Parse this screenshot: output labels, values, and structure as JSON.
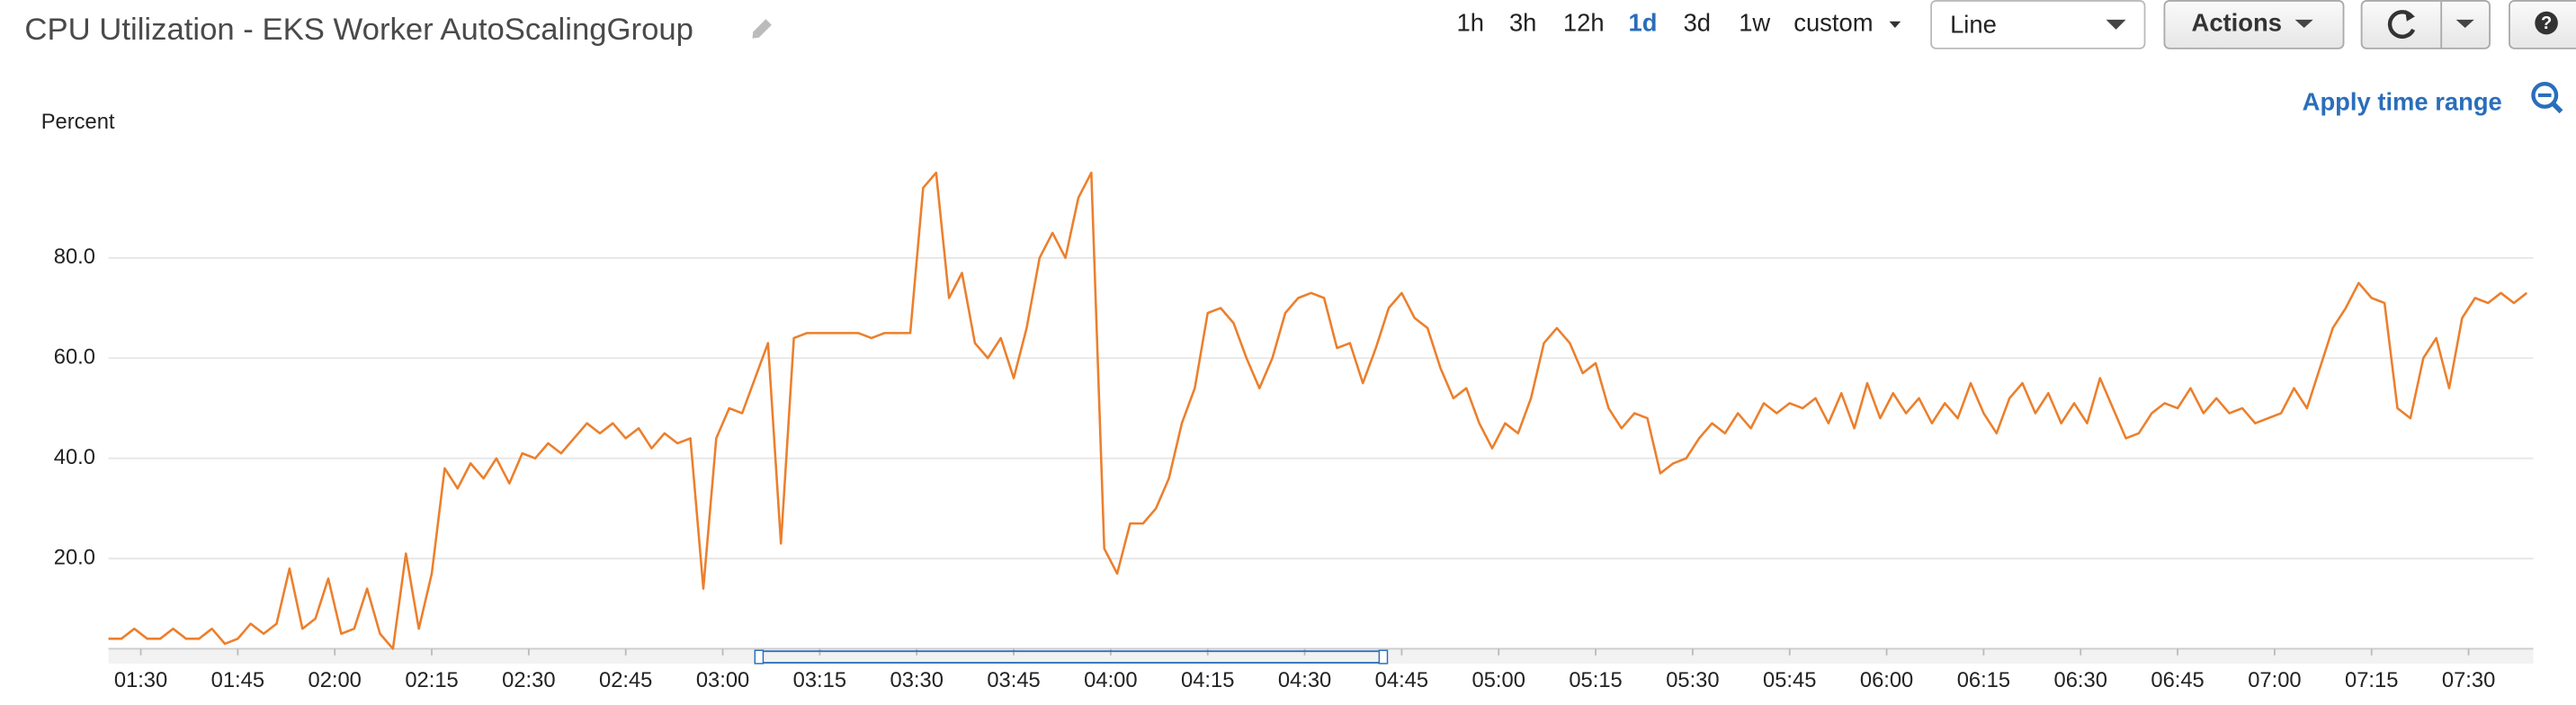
{
  "header": {
    "title": "CPU Utilization - EKS Worker AutoScalingGroup",
    "time_ranges": [
      "1h",
      "3h",
      "12h",
      "1d",
      "3d",
      "1w",
      "custom"
    ],
    "selected_range": 3,
    "view_type": "Line",
    "actions": "Actions",
    "help": "?",
    "apply_link": "Apply time range"
  },
  "chart_data": {
    "type": "line",
    "y_label": "Percent",
    "color": "#ec7f2c",
    "x": [
      "01:25",
      "01:27",
      "01:29",
      "01:31",
      "01:33",
      "01:35",
      "01:37",
      "01:39",
      "01:41",
      "01:43",
      "01:45",
      "01:47",
      "01:49",
      "01:51",
      "01:53",
      "01:55",
      "01:57",
      "01:59",
      "02:01",
      "02:03",
      "02:05",
      "02:07",
      "02:09",
      "02:11",
      "02:13",
      "02:15",
      "02:17",
      "02:19",
      "02:21",
      "02:23",
      "02:25",
      "02:27",
      "02:29",
      "02:31",
      "02:33",
      "02:35",
      "02:37",
      "02:39",
      "02:41",
      "02:43",
      "02:45",
      "02:47",
      "02:49",
      "02:51",
      "02:53",
      "02:55",
      "02:57",
      "02:59",
      "03:01",
      "03:03",
      "03:05",
      "03:07",
      "03:09",
      "03:11",
      "03:13",
      "03:15",
      "03:17",
      "03:19",
      "03:21",
      "03:23",
      "03:25",
      "03:27",
      "03:29",
      "03:31",
      "03:33",
      "03:35",
      "03:37",
      "03:39",
      "03:41",
      "03:43",
      "03:45",
      "03:47",
      "03:49",
      "03:51",
      "03:53",
      "03:55",
      "03:57",
      "03:59",
      "04:01",
      "04:03",
      "04:05",
      "04:07",
      "04:09",
      "04:11",
      "04:13",
      "04:15",
      "04:17",
      "04:19",
      "04:21",
      "04:23",
      "04:25",
      "04:27",
      "04:29",
      "04:31",
      "04:33",
      "04:35",
      "04:37",
      "04:39",
      "04:41",
      "04:43",
      "04:45",
      "04:47",
      "04:49",
      "04:51",
      "04:53",
      "04:55",
      "04:57",
      "04:59",
      "05:01",
      "05:03",
      "05:05",
      "05:07",
      "05:09",
      "05:11",
      "05:13",
      "05:15",
      "05:17",
      "05:19",
      "05:21",
      "05:23",
      "05:25",
      "05:27",
      "05:29",
      "05:31",
      "05:33",
      "05:35",
      "05:37",
      "05:39",
      "05:41",
      "05:43",
      "05:45",
      "05:47",
      "05:49",
      "05:51",
      "05:53",
      "05:55",
      "05:57",
      "05:59",
      "06:01",
      "06:03",
      "06:05",
      "06:07",
      "06:09",
      "06:11",
      "06:13",
      "06:15",
      "06:17",
      "06:19",
      "06:21",
      "06:23",
      "06:25",
      "06:27",
      "06:29",
      "06:31",
      "06:33",
      "06:35",
      "06:37",
      "06:39",
      "06:41",
      "06:43",
      "06:45",
      "06:47",
      "06:49",
      "06:51",
      "06:53",
      "06:55",
      "06:57",
      "06:59",
      "07:01",
      "07:03",
      "07:05",
      "07:07",
      "07:09",
      "07:11",
      "07:13",
      "07:15",
      "07:17",
      "07:19",
      "07:21",
      "07:23",
      "07:25",
      "07:27",
      "07:29",
      "07:31",
      "07:33",
      "07:35",
      "07:37",
      "07:39"
    ],
    "values": [
      4,
      4,
      6,
      4,
      4,
      6,
      4,
      4,
      6,
      3,
      4,
      7,
      5,
      7,
      18,
      6,
      8,
      16,
      5,
      6,
      14,
      5,
      2,
      21,
      6,
      17,
      38,
      34,
      39,
      36,
      40,
      35,
      41,
      40,
      43,
      41,
      44,
      47,
      45,
      47,
      44,
      46,
      42,
      45,
      43,
      44,
      14,
      44,
      50,
      49,
      56,
      63,
      23,
      64,
      65,
      65,
      65,
      65,
      65,
      64,
      65,
      65,
      65,
      94,
      97,
      72,
      77,
      63,
      60,
      64,
      56,
      66,
      80,
      85,
      80,
      92,
      97,
      22,
      17,
      27,
      27,
      30,
      36,
      47,
      54,
      69,
      70,
      67,
      60,
      54,
      60,
      69,
      72,
      73,
      72,
      62,
      63,
      55,
      62,
      70,
      73,
      68,
      66,
      58,
      52,
      54,
      47,
      42,
      47,
      45,
      52,
      63,
      66,
      63,
      57,
      59,
      50,
      46,
      49,
      48,
      37,
      39,
      40,
      44,
      47,
      45,
      49,
      46,
      51,
      49,
      51,
      50,
      52,
      47,
      53,
      46,
      55,
      48,
      53,
      49,
      52,
      47,
      51,
      48,
      55,
      49,
      45,
      52,
      55,
      49,
      53,
      47,
      51,
      47,
      56,
      50,
      44,
      45,
      49,
      51,
      50,
      54,
      49,
      52,
      49,
      50,
      47,
      48,
      49,
      54,
      50,
      58,
      66,
      70,
      75,
      72,
      71,
      50,
      48,
      60,
      64,
      54,
      68,
      72,
      71,
      73,
      71,
      73
    ],
    "xlim": [
      "01:25",
      "07:40"
    ],
    "xticks": [
      "01:30",
      "01:45",
      "02:00",
      "02:15",
      "02:30",
      "02:45",
      "03:00",
      "03:15",
      "03:30",
      "03:45",
      "04:00",
      "04:15",
      "04:30",
      "04:45",
      "05:00",
      "05:15",
      "05:30",
      "05:45",
      "06:00",
      "06:15",
      "06:30",
      "06:45",
      "07:00",
      "07:15",
      "07:30"
    ],
    "ylim": [
      2,
      100
    ],
    "yticks": [
      {
        "value": 20,
        "label": "20.0"
      },
      {
        "value": 40,
        "label": "40.0"
      },
      {
        "value": 60,
        "label": "60.0"
      },
      {
        "value": 80,
        "label": "80.0"
      }
    ],
    "grid": true
  }
}
